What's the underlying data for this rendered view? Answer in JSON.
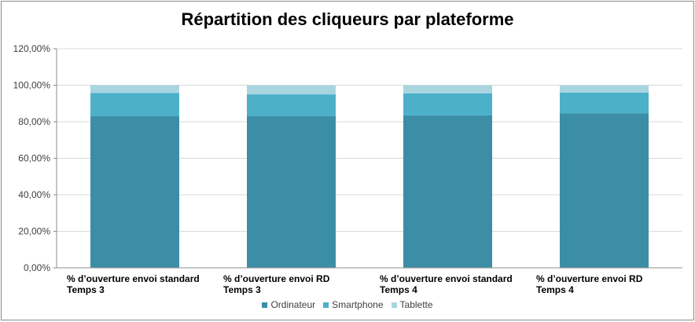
{
  "chart_data": {
    "type": "bar",
    "stacked": true,
    "title": "Répartition des cliqueurs par plateforme",
    "categories": [
      [
        "% d’ouverture envoi standard",
        "Temps 3"
      ],
      [
        "% d’ouverture envoi RD",
        "Temps 3"
      ],
      [
        "% d’ouverture envoi standard",
        "Temps 4"
      ],
      [
        "% d’ouverture envoi RD",
        "Temps 4"
      ]
    ],
    "series": [
      {
        "name": "Ordinateur",
        "color": "#3c8ea6",
        "values": [
          83.0,
          83.0,
          83.5,
          84.5
        ]
      },
      {
        "name": "Smartphone",
        "color": "#4cb0c9",
        "values": [
          12.8,
          12.0,
          12.0,
          11.5
        ]
      },
      {
        "name": "Tablette",
        "color": "#a9d5e1",
        "values": [
          4.2,
          5.0,
          4.5,
          4.0
        ]
      }
    ],
    "ylim": [
      0,
      120
    ],
    "yticks": [
      0,
      20,
      40,
      60,
      80,
      100,
      120
    ],
    "ytick_labels": [
      "0,00%",
      "20,00%",
      "40,00%",
      "60,00%",
      "80,00%",
      "100,00%",
      "120,00%"
    ],
    "grid": true,
    "legend_position": "bottom"
  }
}
